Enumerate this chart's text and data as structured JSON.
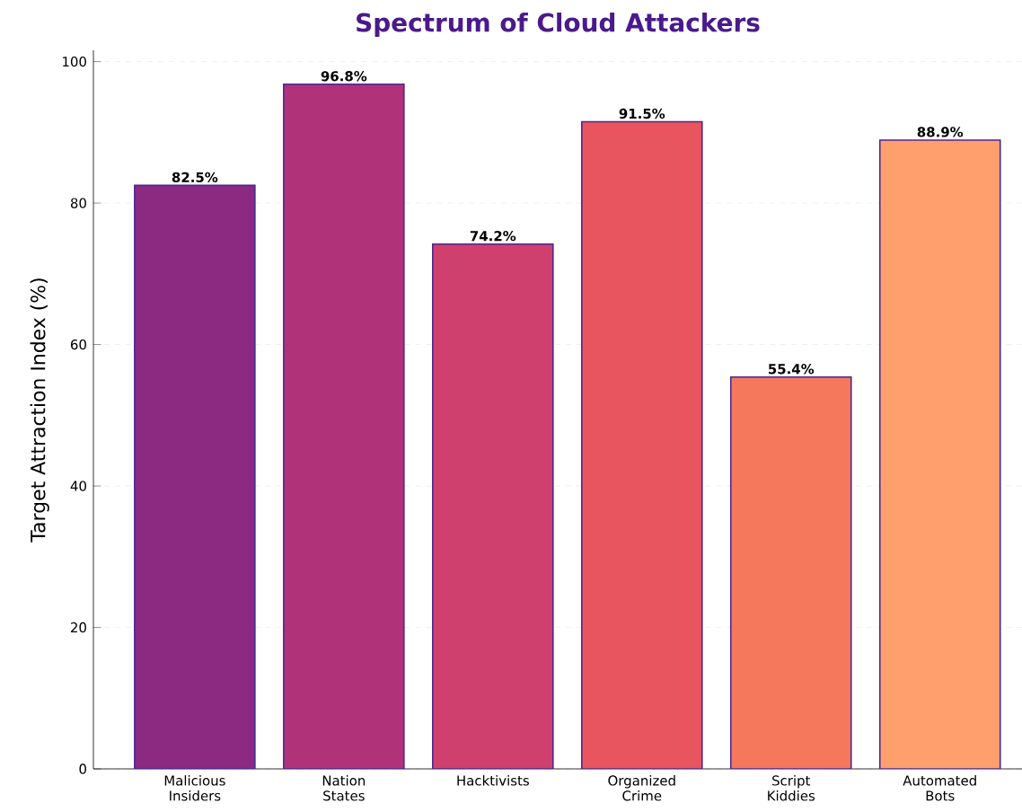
{
  "chart_data": {
    "type": "bar",
    "title": "Spectrum of Cloud Attackers",
    "ylabel": "Target Attraction Index (%)",
    "categories": [
      "Malicious Insiders",
      "Nation States",
      "Hacktivists",
      "Organized Crime",
      "Script Kiddies",
      "Automated Bots"
    ],
    "values": [
      82.5,
      96.8,
      74.2,
      91.5,
      55.4,
      88.9
    ],
    "value_labels": [
      "82.5%",
      "96.8%",
      "74.2%",
      "91.5%",
      "55.4%",
      "88.9%"
    ],
    "colors": [
      "#8c2981",
      "#b0337a",
      "#d0406e",
      "#e8555f",
      "#f6785c",
      "#fe9f6d"
    ],
    "ylim": [
      0,
      101.6
    ],
    "yticks": [
      0,
      20,
      40,
      60,
      80,
      100
    ],
    "grid": "y"
  }
}
